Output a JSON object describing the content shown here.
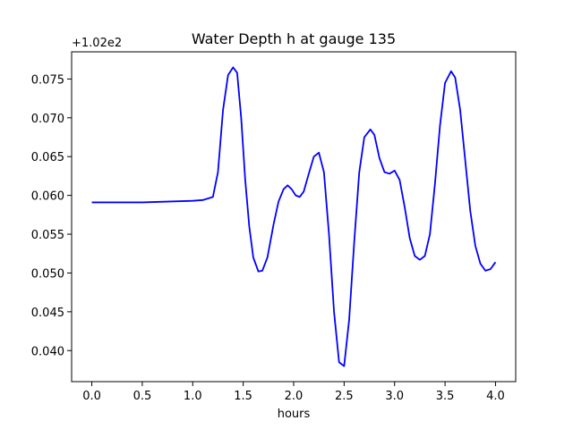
{
  "chart_data": {
    "type": "line",
    "title": "Water Depth h at gauge 135",
    "xlabel": "hours",
    "ylabel": "",
    "y_offset_label": "+1.02e2",
    "xlim": [
      -0.2,
      4.2
    ],
    "ylim": [
      0.036,
      0.0785
    ],
    "x_ticks": [
      "0.0",
      "0.5",
      "1.0",
      "1.5",
      "2.0",
      "2.5",
      "3.0",
      "3.5",
      "4.0"
    ],
    "y_ticks": [
      "0.040",
      "0.045",
      "0.050",
      "0.055",
      "0.060",
      "0.065",
      "0.070",
      "0.075"
    ],
    "grid": false,
    "legend": "none",
    "line_color": "#0000ff",
    "series": [
      {
        "x": [
          0.0,
          0.5,
          1.0,
          1.1,
          1.2,
          1.25,
          1.3,
          1.35,
          1.4,
          1.44,
          1.48,
          1.52,
          1.56,
          1.6,
          1.65,
          1.69,
          1.74,
          1.8,
          1.85,
          1.9,
          1.94,
          1.98,
          2.02,
          2.06,
          2.1,
          2.15,
          2.2,
          2.25,
          2.3,
          2.35,
          2.4,
          2.45,
          2.5,
          2.55,
          2.6,
          2.65,
          2.7,
          2.76,
          2.8,
          2.85,
          2.9,
          2.95,
          3.0,
          3.05,
          3.1,
          3.15,
          3.2,
          3.25,
          3.3,
          3.35,
          3.4,
          3.45,
          3.5,
          3.56,
          3.6,
          3.65,
          3.7,
          3.75,
          3.8,
          3.85,
          3.9,
          3.95,
          4.0
        ],
        "y": [
          0.0591,
          0.0591,
          0.0593,
          0.0594,
          0.0598,
          0.063,
          0.071,
          0.0755,
          0.0765,
          0.0758,
          0.07,
          0.062,
          0.056,
          0.052,
          0.0502,
          0.0503,
          0.052,
          0.0562,
          0.0592,
          0.0608,
          0.0613,
          0.0608,
          0.06,
          0.0598,
          0.0605,
          0.0628,
          0.065,
          0.0655,
          0.063,
          0.055,
          0.045,
          0.0385,
          0.038,
          0.044,
          0.054,
          0.063,
          0.0675,
          0.0685,
          0.0678,
          0.0648,
          0.063,
          0.0628,
          0.0632,
          0.062,
          0.0585,
          0.0545,
          0.0522,
          0.0517,
          0.0522,
          0.055,
          0.0615,
          0.069,
          0.0745,
          0.076,
          0.0752,
          0.071,
          0.0645,
          0.058,
          0.0535,
          0.0512,
          0.0503,
          0.0505,
          0.0514
        ]
      }
    ]
  }
}
